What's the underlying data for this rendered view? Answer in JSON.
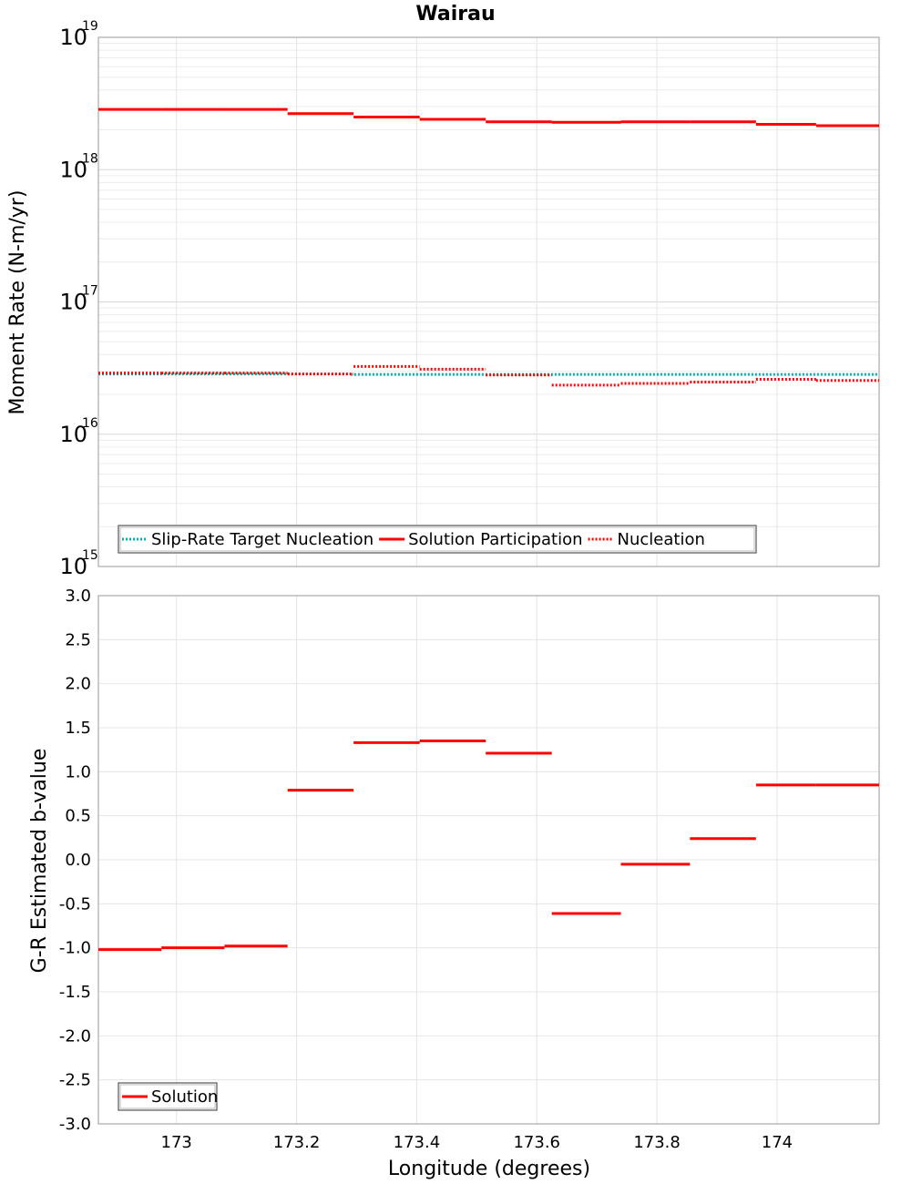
{
  "chart_data": [
    {
      "type": "line",
      "title": "Wairau",
      "ylabel": "Moment Rate (N-m/yr)",
      "yscale": "log",
      "ylim": [
        1000000000000000.0,
        1e+19
      ],
      "xlim": [
        172.87,
        174.17
      ],
      "ytick_labels": [
        {
          "base": "10",
          "exp": "15",
          "value": 1000000000000000.0
        },
        {
          "base": "10",
          "exp": "16",
          "value": 1e+16
        },
        {
          "base": "10",
          "exp": "17",
          "value": 1e+17
        },
        {
          "base": "10",
          "exp": "18",
          "value": 1e+18
        },
        {
          "base": "10",
          "exp": "19",
          "value": 1e+19
        }
      ],
      "legend_position": "bottom-left",
      "series": [
        {
          "name": "Slip-Rate Target Nucleation",
          "color": "#00b4b4",
          "style": "dotted",
          "segments": [
            [
              172.87,
              173.29,
              2.85e+16
            ],
            [
              173.29,
              174.17,
              2.83e+16
            ]
          ]
        },
        {
          "name": "Solution Participation",
          "color": "#ff0000",
          "style": "solid",
          "segments": [
            [
              172.87,
              172.975,
              2.85e+18
            ],
            [
              172.975,
              173.08,
              2.85e+18
            ],
            [
              173.08,
              173.185,
              2.85e+18
            ],
            [
              173.185,
              173.295,
              2.65e+18
            ],
            [
              173.295,
              173.405,
              2.5e+18
            ],
            [
              173.405,
              173.515,
              2.4e+18
            ],
            [
              173.515,
              173.625,
              2.3e+18
            ],
            [
              173.625,
              173.74,
              2.28e+18
            ],
            [
              173.74,
              173.855,
              2.3e+18
            ],
            [
              173.855,
              173.965,
              2.3e+18
            ],
            [
              173.965,
              174.065,
              2.2e+18
            ],
            [
              174.065,
              174.17,
              2.15e+18
            ]
          ]
        },
        {
          "name": "Nucleation",
          "color": "#ff0000",
          "style": "dotted",
          "segments": [
            [
              172.87,
              172.975,
              2.9e+16
            ],
            [
              172.975,
              173.08,
              2.9e+16
            ],
            [
              173.08,
              173.185,
              2.9e+16
            ],
            [
              173.185,
              173.295,
              2.85e+16
            ],
            [
              173.295,
              173.405,
              3.25e+16
            ],
            [
              173.405,
              173.515,
              3.1e+16
            ],
            [
              173.515,
              173.625,
              2.8e+16
            ],
            [
              173.625,
              173.74,
              2.35e+16
            ],
            [
              173.74,
              173.855,
              2.42e+16
            ],
            [
              173.855,
              173.965,
              2.48e+16
            ],
            [
              173.965,
              174.065,
              2.6e+16
            ],
            [
              174.065,
              174.17,
              2.55e+16
            ]
          ]
        }
      ]
    },
    {
      "type": "line",
      "xlabel": "Longitude (degrees)",
      "ylabel": "G-R Estimated b-value",
      "ylim": [
        -3.0,
        3.0
      ],
      "xlim": [
        172.87,
        174.17
      ],
      "yticks": [
        3.0,
        2.5,
        2.0,
        1.5,
        1.0,
        0.5,
        0.0,
        -0.5,
        -1.0,
        -1.5,
        -2.0,
        -2.5,
        -3.0
      ],
      "ytick_labels": [
        "3.0",
        "2.5",
        "2.0",
        "1.5",
        "1.0",
        "0.5",
        "0.0",
        "-0.5",
        "-1.0",
        "-1.5",
        "-2.0",
        "-2.5",
        "-3.0"
      ],
      "xticks": [
        173,
        173.2,
        173.4,
        173.6,
        173.8,
        174
      ],
      "xtick_labels": [
        "173",
        "173.2",
        "173.4",
        "173.6",
        "173.8",
        "174"
      ],
      "legend_position": "bottom-left",
      "series": [
        {
          "name": "Solution",
          "color": "#ff0000",
          "style": "solid",
          "segments": [
            [
              172.87,
              172.975,
              -1.02
            ],
            [
              172.975,
              173.08,
              -1.0
            ],
            [
              173.08,
              173.185,
              -0.98
            ],
            [
              173.185,
              173.295,
              0.79
            ],
            [
              173.295,
              173.405,
              1.33
            ],
            [
              173.405,
              173.515,
              1.35
            ],
            [
              173.515,
              173.625,
              1.21
            ],
            [
              173.625,
              173.74,
              -0.61
            ],
            [
              173.74,
              173.855,
              -0.05
            ],
            [
              173.855,
              173.965,
              0.24
            ],
            [
              173.965,
              174.065,
              0.85
            ],
            [
              174.065,
              174.17,
              0.85
            ]
          ]
        }
      ]
    }
  ]
}
